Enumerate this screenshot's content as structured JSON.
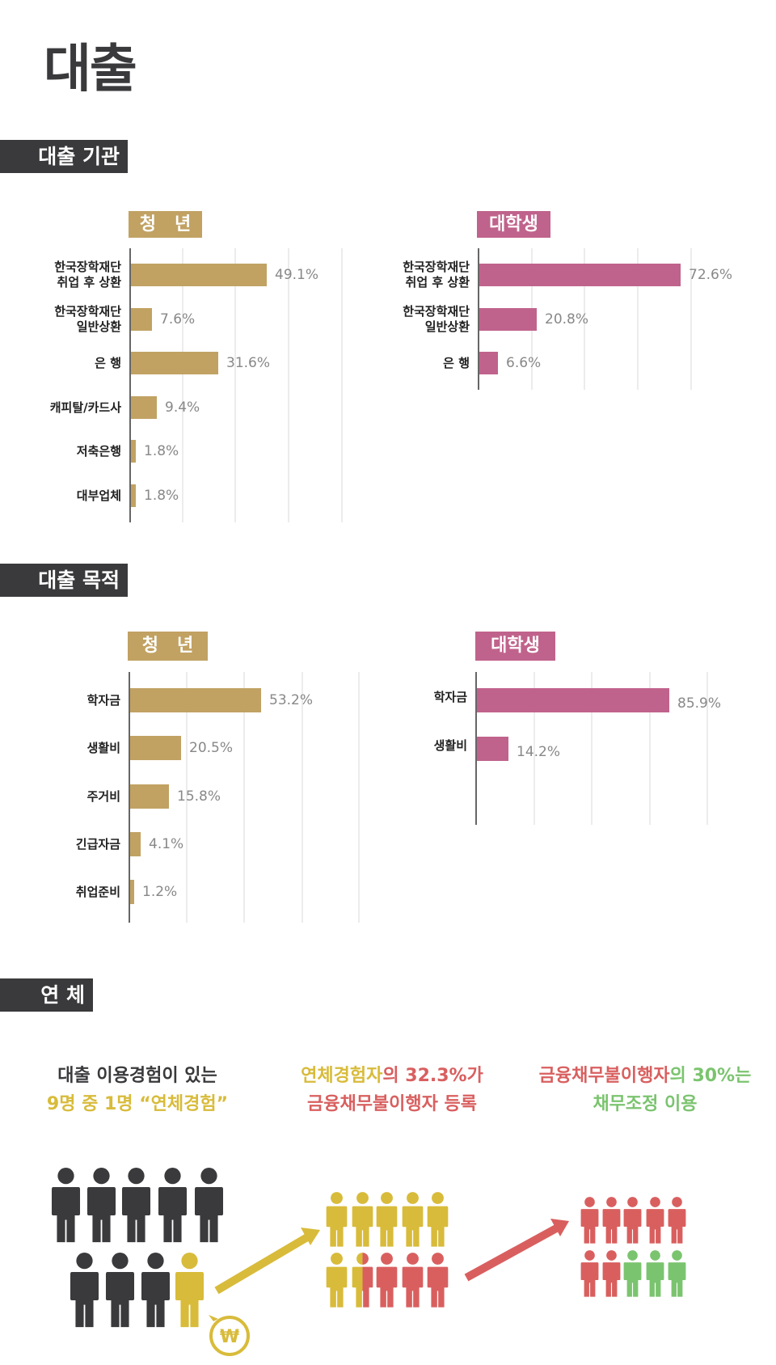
{
  "page_title": "대출",
  "sections": {
    "institution": "대출 기관",
    "purpose": "대출 목적",
    "delinquency": "연 체"
  },
  "group_labels": {
    "youth": "청   년",
    "student": "대학생"
  },
  "colors": {
    "youth": "#c1a263",
    "student": "#c0638c",
    "dark": "#3a3a3c",
    "yellow": "#d8bb3a",
    "red": "#d95f5f",
    "green": "#7bc46f"
  },
  "chart_data": [
    {
      "type": "bar",
      "orientation": "horizontal",
      "title": "대출 기관 - 청년",
      "categories": [
        "한국장학재단\n취업 후 상환",
        "한국장학재단\n일반상환",
        "은   행",
        "캐피탈/카드사",
        "저축은행",
        "대부업체"
      ],
      "values": [
        49.1,
        7.6,
        31.6,
        9.4,
        1.8,
        1.8
      ],
      "labels": [
        "49.1%",
        "7.6%",
        "31.6%",
        "9.4%",
        "1.8%",
        "1.8%"
      ],
      "unit": "%",
      "grid": true
    },
    {
      "type": "bar",
      "orientation": "horizontal",
      "title": "대출 기관 - 대학생",
      "categories": [
        "한국장학재단\n취업 후 상환",
        "한국장학재단\n일반상환",
        "은   행"
      ],
      "values": [
        72.6,
        20.8,
        6.6
      ],
      "labels": [
        "72.6%",
        "20.8%",
        "6.6%"
      ],
      "unit": "%",
      "grid": true
    },
    {
      "type": "bar",
      "orientation": "horizontal",
      "title": "대출 목적 - 청년",
      "categories": [
        "학자금",
        "생활비",
        "주거비",
        "긴급자금",
        "취업준비"
      ],
      "values": [
        53.2,
        20.5,
        15.8,
        4.1,
        1.2
      ],
      "labels": [
        "53.2%",
        "20.5%",
        "15.8%",
        "4.1%",
        "1.2%"
      ],
      "unit": "%",
      "grid": true
    },
    {
      "type": "bar",
      "orientation": "horizontal",
      "title": "대출 목적 - 대학생",
      "categories": [
        "학자금",
        "생활비"
      ],
      "values": [
        85.9,
        14.2
      ],
      "labels": [
        "85.9%",
        "14.2%"
      ],
      "unit": "%",
      "grid": true
    }
  ],
  "captions": [
    {
      "line1": [
        {
          "text": "대출 이용경험이 있는",
          "color": "dark"
        }
      ],
      "line2": [
        {
          "text": "9명 중 1명 “연체경험”",
          "color": "yellow"
        }
      ]
    },
    {
      "line1": [
        {
          "text": "연체경험자",
          "color": "yellow"
        },
        {
          "text": "의 32.3%가",
          "color": "red"
        }
      ],
      "line2": [
        {
          "text": "금융채무불이행자 등록",
          "color": "red"
        }
      ]
    },
    {
      "line1": [
        {
          "text": "금융채무불이행자",
          "color": "red"
        },
        {
          "text": "의 30%는",
          "color": "green"
        }
      ],
      "line2": [
        {
          "text": "채무조정 이용",
          "color": "green"
        }
      ]
    }
  ],
  "icons": {
    "person": "person-icon",
    "won": "₩",
    "arrow": "arrow-icon"
  }
}
